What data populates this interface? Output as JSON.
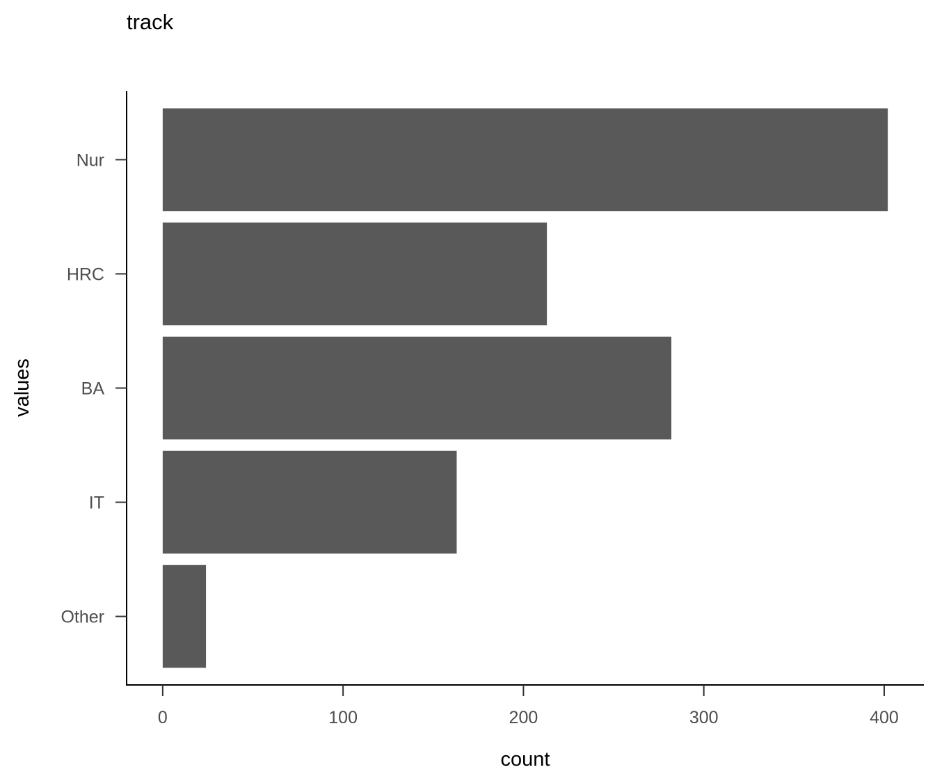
{
  "chart_data": {
    "type": "bar",
    "orientation": "horizontal",
    "title": "track",
    "xlabel": "count",
    "ylabel": "values",
    "categories": [
      "Nur",
      "HRC",
      "BA",
      "IT",
      "Other"
    ],
    "values": [
      402,
      213,
      282,
      163,
      24
    ],
    "xlim": [
      -20,
      422
    ],
    "xticks": [
      0,
      100,
      200,
      300,
      400
    ],
    "grid": false,
    "legend": "none",
    "bar_color": "#595959"
  }
}
